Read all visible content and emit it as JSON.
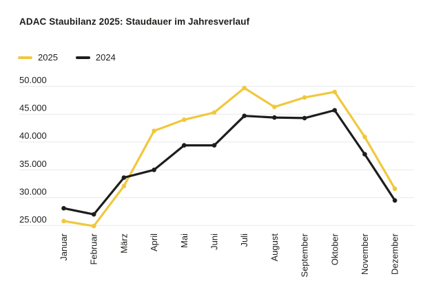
{
  "header": {
    "title": "ADAC Staubilanz 2025: Staudauer im Jahresverlauf"
  },
  "legend": [
    {
      "label": "2025",
      "color": "#F0C83C"
    },
    {
      "label": "2024",
      "color": "#1D1D1B"
    }
  ],
  "chart_data": {
    "type": "line",
    "title": "ADAC Staubilanz 2025: Staudauer im Jahresverlauf",
    "categories": [
      "Januar",
      "Februar",
      "März",
      "April",
      "Mai",
      "Juni",
      "Juli",
      "August",
      "September",
      "Oktober",
      "November",
      "Dezember"
    ],
    "series": [
      {
        "name": "2025",
        "color": "#F0C83C",
        "values": [
          25800,
          24900,
          32100,
          42000,
          44000,
          45300,
          49700,
          46300,
          48000,
          49000,
          40900,
          31600
        ]
      },
      {
        "name": "2024",
        "color": "#1D1D1B",
        "values": [
          28100,
          27000,
          33600,
          35000,
          39400,
          39400,
          44700,
          44400,
          44300,
          45700,
          37800,
          29500
        ]
      }
    ],
    "y_axis": {
      "min": 25000,
      "max": 50000,
      "tick_step": 5000,
      "tick_labels": [
        "25.000",
        "30.000",
        "35.000",
        "40.000",
        "45.000",
        "50.000"
      ]
    },
    "x_axis": {
      "label_rotation_deg": -90
    },
    "grid": "horizontal",
    "legend_position": "top-left"
  },
  "colors": {
    "background": "#FFFFFF",
    "grid": "#E8E8E8",
    "text": "#1D1D1B"
  }
}
